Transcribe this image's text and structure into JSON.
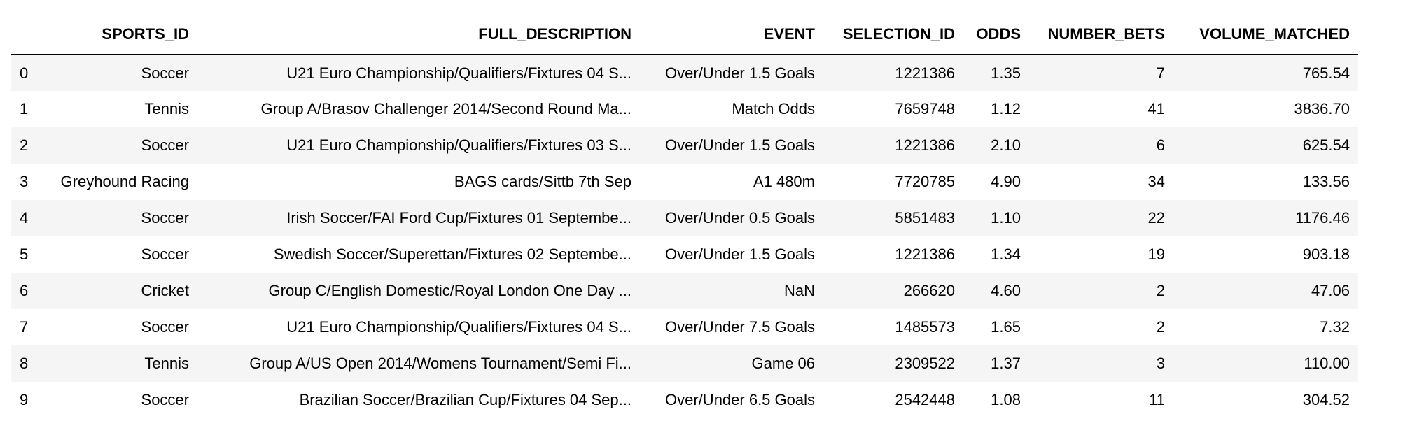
{
  "table": {
    "index_header": "",
    "columns": [
      "SPORTS_ID",
      "FULL_DESCRIPTION",
      "EVENT",
      "SELECTION_ID",
      "ODDS",
      "NUMBER_BETS",
      "VOLUME_MATCHED"
    ],
    "rows": [
      {
        "index": "0",
        "cells": [
          "Soccer",
          "U21 Euro Championship/Qualifiers/Fixtures 04 S...",
          "Over/Under 1.5 Goals",
          "1221386",
          "1.35",
          "7",
          "765.54"
        ]
      },
      {
        "index": "1",
        "cells": [
          "Tennis",
          "Group A/Brasov Challenger 2014/Second Round Ma...",
          "Match Odds",
          "7659748",
          "1.12",
          "41",
          "3836.70"
        ]
      },
      {
        "index": "2",
        "cells": [
          "Soccer",
          "U21 Euro Championship/Qualifiers/Fixtures 03 S...",
          "Over/Under 1.5 Goals",
          "1221386",
          "2.10",
          "6",
          "625.54"
        ]
      },
      {
        "index": "3",
        "cells": [
          "Greyhound Racing",
          "BAGS cards/Sittb 7th Sep",
          "A1 480m",
          "7720785",
          "4.90",
          "34",
          "133.56"
        ]
      },
      {
        "index": "4",
        "cells": [
          "Soccer",
          "Irish Soccer/FAI Ford Cup/Fixtures 01 Septembe...",
          "Over/Under 0.5 Goals",
          "5851483",
          "1.10",
          "22",
          "1176.46"
        ]
      },
      {
        "index": "5",
        "cells": [
          "Soccer",
          "Swedish Soccer/Superettan/Fixtures 02 Septembe...",
          "Over/Under 1.5 Goals",
          "1221386",
          "1.34",
          "19",
          "903.18"
        ]
      },
      {
        "index": "6",
        "cells": [
          "Cricket",
          "Group C/English Domestic/Royal London One Day ...",
          "NaN",
          "266620",
          "4.60",
          "2",
          "47.06"
        ]
      },
      {
        "index": "7",
        "cells": [
          "Soccer",
          "U21 Euro Championship/Qualifiers/Fixtures 04 S...",
          "Over/Under 7.5 Goals",
          "1485573",
          "1.65",
          "2",
          "7.32"
        ]
      },
      {
        "index": "8",
        "cells": [
          "Tennis",
          "Group A/US Open 2014/Womens Tournament/Semi Fi...",
          "Game 06",
          "2309522",
          "1.37",
          "3",
          "110.00"
        ]
      },
      {
        "index": "9",
        "cells": [
          "Soccer",
          "Brazilian Soccer/Brazilian Cup/Fixtures 04 Sep...",
          "Over/Under 6.5 Goals",
          "2542448",
          "1.08",
          "11",
          "304.52"
        ]
      }
    ]
  }
}
